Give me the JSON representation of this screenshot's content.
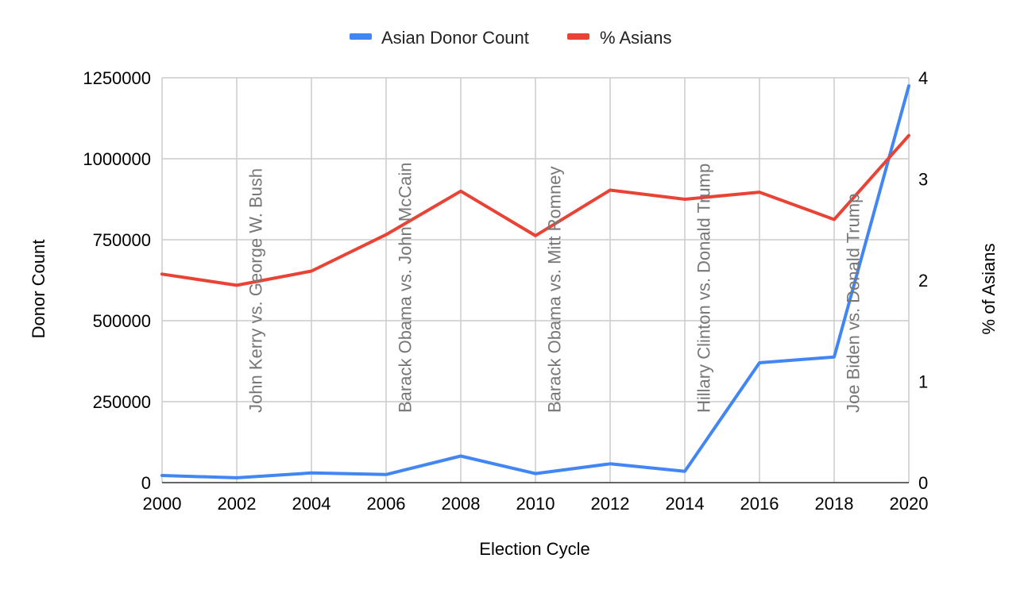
{
  "chart_data": {
    "type": "line",
    "xlabel": "Election Cycle",
    "ylabel": "Donor Count",
    "y2label": "% of Asians",
    "x": [
      2000,
      2002,
      2004,
      2006,
      2008,
      2010,
      2012,
      2014,
      2016,
      2018,
      2020
    ],
    "xlim": [
      2000,
      2020
    ],
    "ylim": [
      0,
      1250000
    ],
    "y2lim": [
      0,
      4
    ],
    "x_ticks": [
      "2000",
      "2002",
      "2004",
      "2006",
      "2008",
      "2010",
      "2012",
      "2014",
      "2016",
      "2018",
      "2020"
    ],
    "y_ticks": [
      "0",
      "250000",
      "500000",
      "750000",
      "1000000",
      "1250000"
    ],
    "y2_ticks": [
      "0",
      "1",
      "2",
      "3",
      "4"
    ],
    "grid": true,
    "legend_position": "top-center",
    "series": [
      {
        "name": "Asian Donor Count",
        "axis": "left",
        "color": "#4285f4",
        "values": [
          22000,
          15000,
          30000,
          25000,
          82000,
          28000,
          58000,
          35000,
          370000,
          388000,
          1225000
        ]
      },
      {
        "name": "% Asians",
        "axis": "right",
        "color": "#ea4335",
        "values": [
          2.06,
          1.95,
          2.09,
          2.45,
          2.88,
          2.44,
          2.89,
          2.8,
          2.87,
          2.6,
          3.43
        ]
      }
    ],
    "annotations": [
      {
        "x": 2002.5,
        "text": "John Kerry vs. George W. Bush"
      },
      {
        "x": 2006.5,
        "text": "Barack Obama vs. John McCain"
      },
      {
        "x": 2010.5,
        "text": "Barack Obama vs. Mitt Romney"
      },
      {
        "x": 2014.5,
        "text": "Hillary Clinton vs. Donald Trump"
      },
      {
        "x": 2018.5,
        "text": "Joe Biden vs. Donald Trump"
      }
    ]
  }
}
